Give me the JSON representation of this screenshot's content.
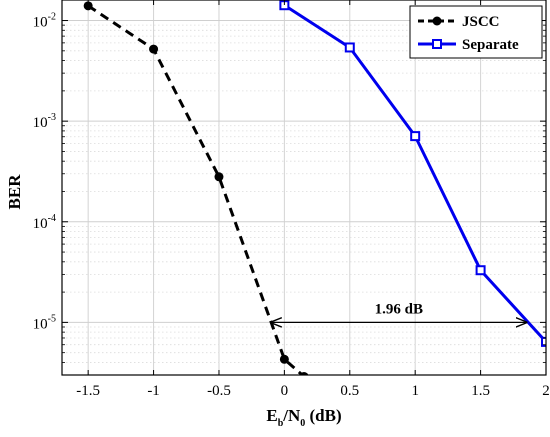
{
  "chart_data": {
    "type": "line",
    "xlabel": {
      "main": "E",
      "sub1": "b",
      "mid": "/N",
      "sub2": "0",
      "tail": " (dB)"
    },
    "ylabel": "BER",
    "xlim": [
      -1.7,
      2.0
    ],
    "ylim": [
      3e-06,
      0.016
    ],
    "yscale": "log",
    "grid": true,
    "minor_grid": true,
    "x_ticks": [
      -1.5,
      -1,
      -0.5,
      0,
      0.5,
      1,
      1.5,
      2
    ],
    "x_tick_labels": [
      "-1.5",
      "-1",
      "-0.5",
      "0",
      "0.5",
      "1",
      "1.5",
      "2"
    ],
    "y_ticks": [
      {
        "value": 1e-05,
        "base": "10",
        "exp": "-5"
      },
      {
        "value": 0.0001,
        "base": "10",
        "exp": "-4"
      },
      {
        "value": 0.001,
        "base": "10",
        "exp": "-3"
      },
      {
        "value": 0.01,
        "base": "10",
        "exp": "-2"
      }
    ],
    "legend_position": "top-right",
    "series": [
      {
        "name": "JSCC",
        "color": "#000000",
        "dash": "dashed",
        "marker": "filled-circle",
        "x": [
          -1.5,
          -1.0,
          -0.5,
          0.0,
          0.15
        ],
        "y": [
          0.014,
          0.0052,
          0.00028,
          4.3e-06,
          2.9e-06
        ]
      },
      {
        "name": "Separate",
        "color": "#0000ee",
        "dash": "solid",
        "marker": "open-square",
        "x": [
          0.0,
          0.5,
          1.0,
          1.5,
          2.0
        ],
        "y": [
          0.0142,
          0.0054,
          0.00071,
          3.3e-05,
          6.4e-06
        ]
      }
    ],
    "annotations": [
      {
        "text": "1.96 dB",
        "x_from": -0.1,
        "x_to": 1.85,
        "y": 1e-05,
        "type": "double-arrow"
      }
    ]
  }
}
